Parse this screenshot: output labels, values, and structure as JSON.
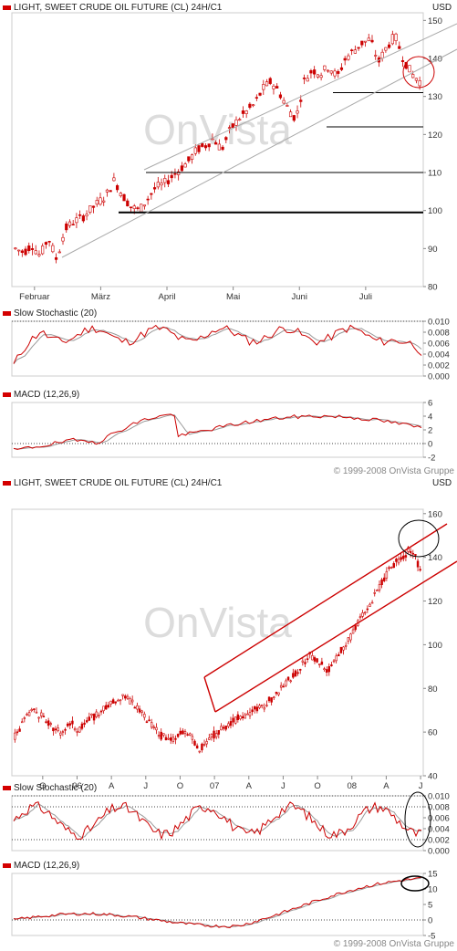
{
  "chart_data": [
    {
      "type": "candlestick",
      "title": "LIGHT, SWEET CRUDE OIL FUTURE (CL) 24H/C1",
      "unit": "USD",
      "x_ticks": [
        "Februar",
        "März",
        "April",
        "Mai",
        "Juni",
        "Juli"
      ],
      "y_ticks": [
        80,
        90,
        100,
        110,
        120,
        130,
        140,
        150
      ],
      "ylim": [
        80,
        152
      ],
      "price_path": [
        90,
        89,
        91,
        88,
        93,
        87,
        95,
        97,
        98,
        100,
        102,
        104,
        108,
        104,
        101,
        100,
        103,
        106,
        107,
        109,
        111,
        113,
        116,
        117,
        119,
        116,
        121,
        124,
        126,
        128,
        132,
        134,
        131,
        127,
        124,
        134,
        137,
        136,
        138,
        135,
        140,
        142,
        144,
        145,
        139,
        143,
        146,
        140,
        136,
        134
      ],
      "horizontal_lines": [
        99.5,
        110,
        122,
        131
      ],
      "watermark": "OnVista",
      "annotations": [
        "circle"
      ]
    },
    {
      "type": "line",
      "title": "Slow Stochastic (20)",
      "y_ticks": [
        "0.010",
        "0.008",
        "0.006",
        "0.004",
        "0.002",
        "0.000"
      ],
      "ylim": [
        0,
        0.01
      ]
    },
    {
      "type": "line",
      "title": "MACD (12,26,9)",
      "y_ticks": [
        6,
        4,
        2,
        0,
        -2
      ],
      "ylim": [
        -2,
        6
      ]
    },
    {
      "type": "candlestick",
      "title": "LIGHT, SWEET CRUDE OIL FUTURE (CL) 24H/C1",
      "unit": "USD",
      "x_ticks": [
        "O",
        "06",
        "A",
        "J",
        "O",
        "07",
        "A",
        "J",
        "O",
        "08",
        "A",
        "J"
      ],
      "y_ticks": [
        40,
        60,
        80,
        100,
        120,
        140,
        160
      ],
      "ylim": [
        40,
        162
      ],
      "price_path": [
        58,
        65,
        70,
        67,
        62,
        60,
        64,
        61,
        66,
        68,
        72,
        75,
        77,
        72,
        68,
        62,
        58,
        56,
        60,
        58,
        52,
        57,
        60,
        63,
        66,
        68,
        70,
        72,
        76,
        80,
        85,
        90,
        96,
        92,
        88,
        95,
        100,
        108,
        115,
        122,
        130,
        136,
        140,
        144,
        135
      ],
      "watermark": "OnVista",
      "annotations": [
        "circle"
      ]
    },
    {
      "type": "line",
      "title": "Slow Stochastic (20)",
      "y_ticks": [
        "0.010",
        "0.008",
        "0.006",
        "0.004",
        "0.002",
        "0.000"
      ],
      "ylim": [
        0,
        0.01
      ],
      "annotations": [
        "ellipse"
      ]
    },
    {
      "type": "line",
      "title": "MACD (12,26,9)",
      "y_ticks": [
        15,
        10,
        5,
        0,
        -5
      ],
      "ylim": [
        -5,
        15
      ],
      "annotations": [
        "ellipse"
      ]
    }
  ],
  "copyright": "© 1999-2008 OnVista Gruppe",
  "colors": {
    "candle": "#cc0000",
    "signal": "#999999",
    "panel_border": "#cccccc",
    "header_square": "#d40000"
  }
}
